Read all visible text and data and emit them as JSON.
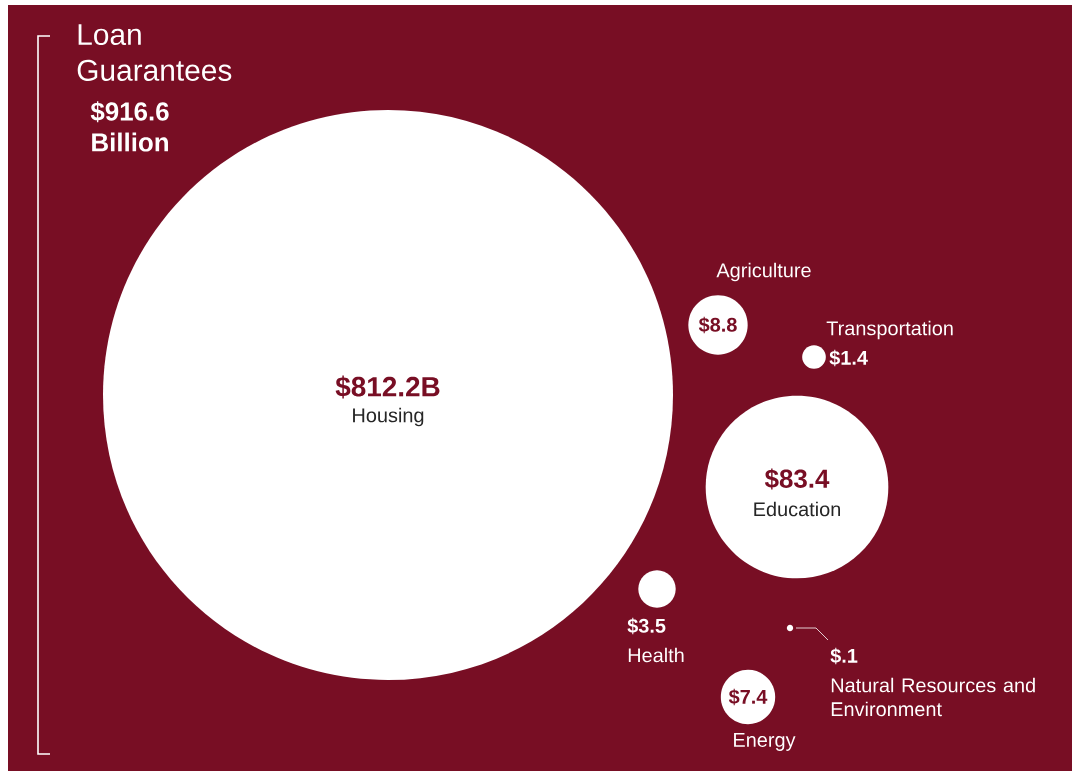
{
  "chart_data": {
    "type": "other",
    "title": "Loan Guarantees",
    "subtitle": "$916.6 Billion",
    "categories": [
      "Housing",
      "Agriculture",
      "Transportation",
      "Education",
      "Health",
      "Natural Resources and Environment",
      "Energy"
    ],
    "values": [
      812.2,
      8.8,
      1.4,
      83.4,
      3.5,
      0.1,
      7.4
    ],
    "value_labels": [
      "$812.2B",
      "$8.8",
      "$1.4",
      "$83.4",
      "$3.5",
      "$.1",
      "$7.4"
    ],
    "colors": [
      "#ffffff",
      "#ffffff",
      "#ffffff",
      "#ffffff",
      "#ffffff",
      "#ffffff",
      "#ffffff"
    ]
  }
}
